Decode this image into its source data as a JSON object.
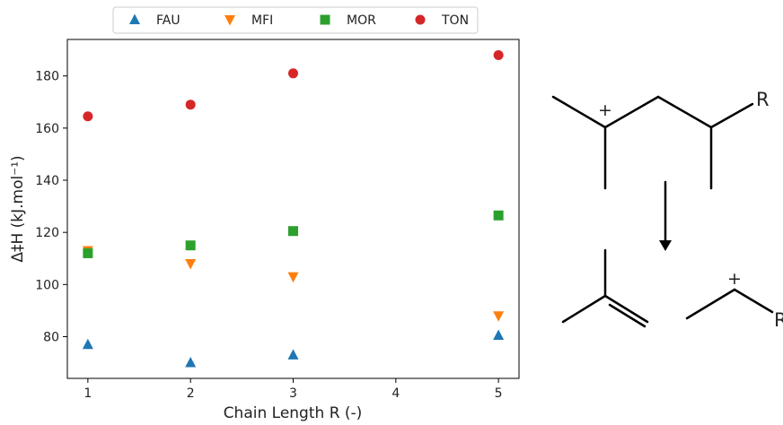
{
  "chart_data": {
    "type": "scatter",
    "xlabel": "Chain Length R (-)",
    "ylabel": "Δ‡H (kJ.mol⁻¹)",
    "xlim": [
      0.8,
      5.2
    ],
    "ylim": [
      64,
      194
    ],
    "x_ticks": [
      1,
      2,
      3,
      4,
      5
    ],
    "y_ticks": [
      80,
      100,
      120,
      140,
      160,
      180
    ],
    "grid": false,
    "legend_position": "top",
    "series": [
      {
        "name": "FAU",
        "marker": "triangle-up",
        "color": "#1f77b4",
        "x": [
          1,
          2,
          3,
          5
        ],
        "y": [
          77,
          70,
          73,
          80.5
        ]
      },
      {
        "name": "MFI",
        "marker": "triangle-down",
        "color": "#ff7f0e",
        "x": [
          1,
          2,
          3,
          5
        ],
        "y": [
          113,
          108,
          103,
          88
        ]
      },
      {
        "name": "MOR",
        "marker": "square",
        "color": "#2ca02c",
        "x": [
          1,
          2,
          3,
          5
        ],
        "y": [
          112,
          115,
          120.5,
          126.5
        ]
      },
      {
        "name": "TON",
        "marker": "circle",
        "color": "#d62728",
        "x": [
          1,
          2,
          3,
          5
        ],
        "y": [
          164.5,
          169,
          181,
          188
        ]
      }
    ]
  },
  "scheme": {
    "top_R_label": "R",
    "top_charge": "+",
    "bottom_R_label": "R",
    "bottom_charge": "+"
  }
}
